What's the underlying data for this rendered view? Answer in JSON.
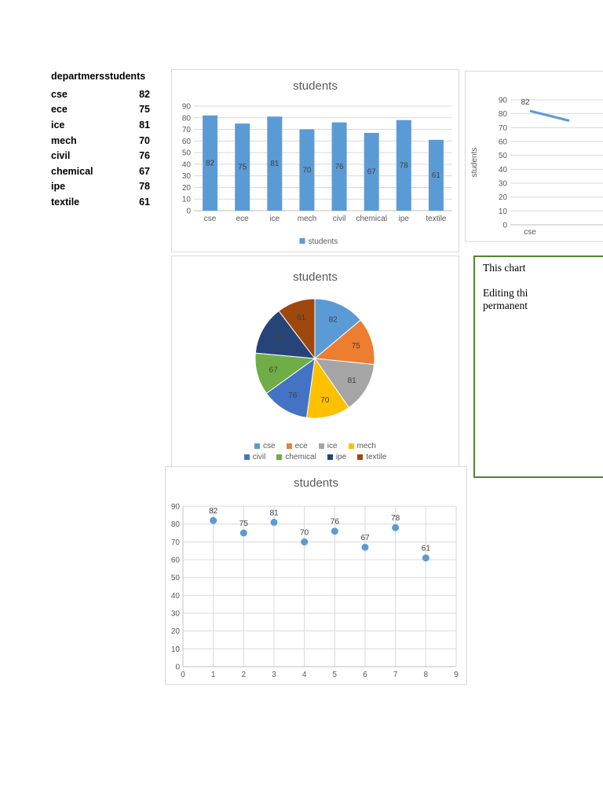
{
  "table": {
    "header_department": "departmers",
    "header_students": "students",
    "rows": [
      {
        "name": "cse",
        "value": "82"
      },
      {
        "name": "ece",
        "value": "75"
      },
      {
        "name": "ice",
        "value": "81"
      },
      {
        "name": "mech",
        "value": "70"
      },
      {
        "name": "civil",
        "value": "76"
      },
      {
        "name": "chemical",
        "value": "67"
      },
      {
        "name": "ipe",
        "value": "78"
      },
      {
        "name": "textile",
        "value": "61"
      }
    ]
  },
  "chart_data": [
    {
      "type": "bar",
      "title": "students",
      "legend": "students",
      "categories": [
        "cse",
        "ece",
        "ice",
        "mech",
        "civil",
        "chemical",
        "ipe",
        "textile"
      ],
      "values": [
        82,
        75,
        81,
        70,
        76,
        67,
        78,
        61
      ],
      "ylim": [
        0,
        90
      ],
      "ystep": 10,
      "grid": true,
      "legend_position": "bottom",
      "color": "#5B9BD5"
    },
    {
      "type": "line",
      "title": "",
      "ylabel": "students",
      "categories": [
        "cse",
        ""
      ],
      "values": [
        82,
        75
      ],
      "data_labels": [
        "82",
        ""
      ],
      "ylim": [
        0,
        90
      ],
      "ystep": 10,
      "grid": true,
      "clipped_right": true,
      "color": "#5B9BD5"
    },
    {
      "type": "pie",
      "title": "students",
      "categories": [
        "cse",
        "ece",
        "ice",
        "mech",
        "civil",
        "chemical",
        "ipe",
        "textile"
      ],
      "values": [
        82,
        75,
        81,
        70,
        76,
        67,
        78,
        61
      ],
      "colors": [
        "#5B9BD5",
        "#ED7D31",
        "#A5A5A5",
        "#FFC000",
        "#4472C4",
        "#70AD47",
        "#264478",
        "#9E480E"
      ],
      "legend_position": "bottom"
    },
    {
      "type": "scatter",
      "title": "students",
      "x": [
        1,
        2,
        3,
        4,
        5,
        6,
        7,
        8
      ],
      "y": [
        82,
        75,
        81,
        70,
        76,
        67,
        78,
        61
      ],
      "xlim": [
        0,
        9
      ],
      "xstep": 1,
      "ylim": [
        0,
        90
      ],
      "ystep": 10,
      "grid": true,
      "color": "#5B9BD5"
    }
  ],
  "textbox": {
    "lines": [
      "This chart",
      "Editing thi",
      "permanent"
    ],
    "border_color": "#548235"
  },
  "colors": {
    "accent": "#5B9BD5",
    "grid": "#D9D9D9",
    "axis": "#BFBFBF",
    "tick": "#595959",
    "label": "#404040",
    "title": "#595959",
    "chart_border": "#D9D9D9",
    "textbox_border": "#548235"
  }
}
